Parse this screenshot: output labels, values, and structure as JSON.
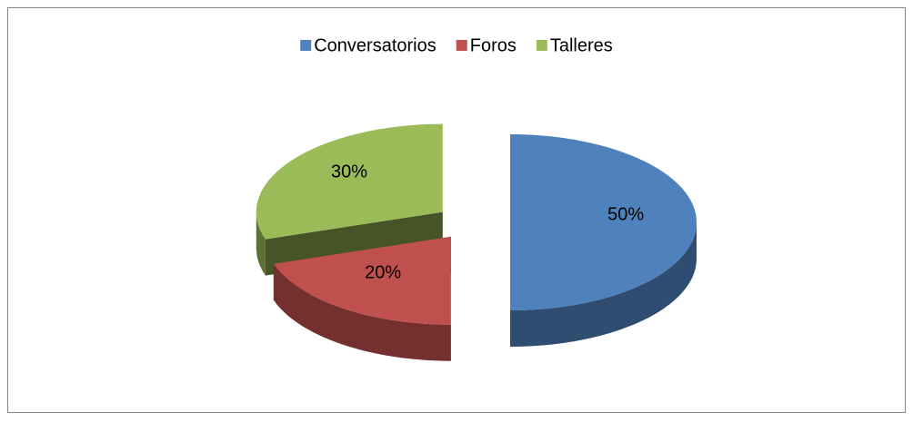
{
  "chart_data": {
    "type": "pie",
    "categories": [
      "Conversatorios",
      "Foros",
      "Talleres"
    ],
    "series": [
      {
        "values": [
          50,
          20,
          30
        ],
        "value_labels": [
          "50%",
          "20%",
          "30%"
        ],
        "colors": [
          "#4f81bd",
          "#c0504d",
          "#9bbb59"
        ]
      }
    ],
    "legend": "top",
    "exploded": true,
    "three_d": true
  }
}
